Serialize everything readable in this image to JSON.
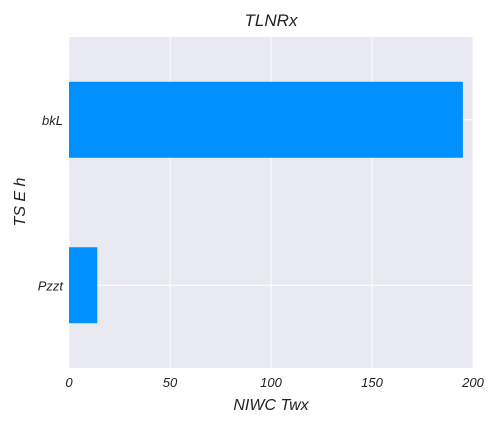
{
  "chart_data": {
    "type": "bar",
    "orientation": "horizontal",
    "title": "TLNRx",
    "xlabel": "NIWC Twx",
    "ylabel": "TS E h",
    "categories": [
      "bkL",
      "Pzzt"
    ],
    "values": [
      195,
      14
    ],
    "xlim": [
      0,
      200
    ],
    "xticks": [
      "0",
      "50",
      "100",
      "150",
      "200"
    ],
    "grid": true,
    "legend": "none",
    "colors": {
      "bar": "#0091ff",
      "plot_background": "#e9e9f2",
      "grid": "#ffffff"
    }
  }
}
